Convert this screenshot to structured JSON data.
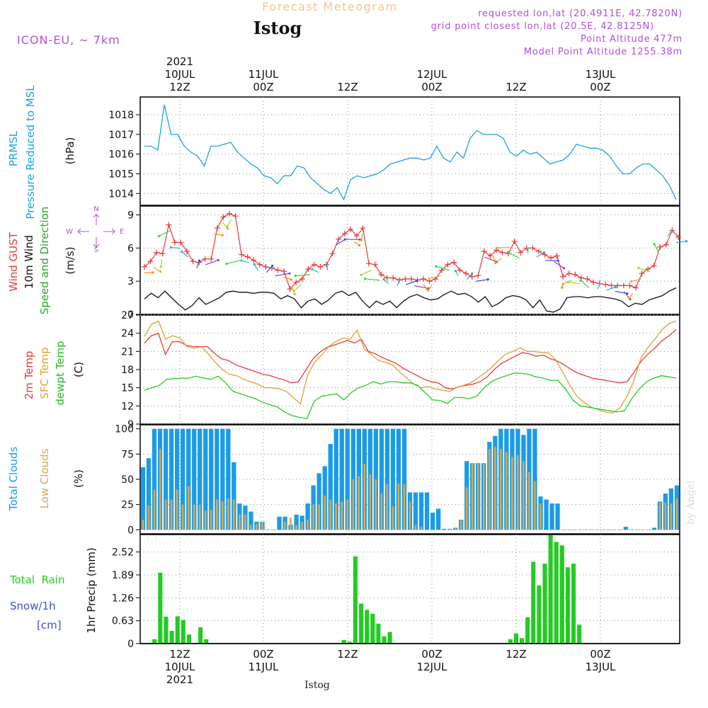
{
  "header": {
    "super_title": "Forecast Meteogram",
    "location": "Istog",
    "model": "ICON-EU, ~ 7km",
    "requested": "requested lon,lat (20.4911E, 42.7820N)",
    "grid_point": "grid point closest lon,lat (20.5E, 42.8125N)",
    "point_altitude": "Point Altitude 477m",
    "model_altitude": "Model Point Altitude 1255.38m",
    "footer": "Istog",
    "watermark": "by Angel"
  },
  "time_axis": {
    "top": [
      {
        "l1": "2021",
        "l2": "10JUL",
        "l3": "12Z"
      },
      {
        "l1": "",
        "l2": "11JUL",
        "l3": "00Z"
      },
      {
        "l1": "",
        "l2": "",
        "l3": "12Z"
      },
      {
        "l1": "",
        "l2": "12JUL",
        "l3": "00Z"
      },
      {
        "l1": "",
        "l2": "",
        "l3": "12Z"
      },
      {
        "l1": "",
        "l2": "13JUL",
        "l3": "00Z"
      }
    ],
    "bottom": [
      {
        "l1": "12Z",
        "l2": "10JUL",
        "l3": "2021"
      },
      {
        "l1": "00Z",
        "l2": "11JUL",
        "l3": ""
      },
      {
        "l1": "12Z",
        "l2": "",
        "l3": ""
      },
      {
        "l1": "00Z",
        "l2": "12JUL",
        "l3": ""
      },
      {
        "l1": "12Z",
        "l2": "",
        "l3": ""
      },
      {
        "l1": "00Z",
        "l2": "13JUL",
        "l3": ""
      }
    ]
  },
  "panel_labels": {
    "pressure": {
      "l1": "PRMSL",
      "l2": "Pressure Reduced to MSL",
      "l3": "(hPa)"
    },
    "wind": {
      "l1": "Wind GUST",
      "l2": "10m Wind",
      "l3": "Speed and Direction",
      "l4": "(m/s)",
      "dir": {
        "n": "N",
        "w": "W",
        "e": "E",
        "s": "S"
      }
    },
    "temp": {
      "l1": "2m Temp",
      "l2": "SFC Temp",
      "l3": "dewpt Temp",
      "l4": "(C)"
    },
    "cloud": {
      "l1": "Total Clouds",
      "l2": "Low Clouds",
      "l3": "(%)"
    },
    "precip": {
      "l1": "Total  Rain",
      "l2": "Snow/1h",
      "l3": "[cm]",
      "l4": "1hr Precip (mm)"
    }
  },
  "colors": {
    "pressure": "#1aa3e0",
    "gust": "#e83a3a",
    "wind": "#111111",
    "t2m": "#e83a3a",
    "tsfc": "#e0a030",
    "dew": "#22cc22",
    "tcc": "#1a9be8",
    "lcc": "#d8a850",
    "rain": "#22cc22",
    "purple": "#b050d8",
    "blue_label": "#3a50d8"
  },
  "chart_data": [
    {
      "type": "line",
      "name": "pressure",
      "ylim": [
        1013.4,
        1018.9
      ],
      "yticks": [
        "1014",
        "1015",
        "1016",
        "1017",
        "1018"
      ],
      "ytick_values": [
        1014,
        1015,
        1016,
        1017,
        1018
      ],
      "x_hours_from": "2021-07-10 04Z",
      "x_range_hours": [
        0,
        79
      ],
      "series": [
        {
          "values": [
            1016.4,
            1016.4,
            1016.2,
            1018.5,
            1017.0,
            1017.0,
            1016.4,
            1016.1,
            1015.9,
            1015.4,
            1016.4,
            1016.4,
            1016.5,
            1016.6,
            1016.1,
            1015.8,
            1015.5,
            1015.3,
            1014.9,
            1014.8,
            1014.5,
            1014.9,
            1014.9,
            1015.4,
            1015.3,
            1014.8,
            1014.5,
            1014.2,
            1014.0,
            1014.3,
            1013.7,
            1014.7,
            1014.9,
            1014.8,
            1014.9,
            1015.0,
            1015.2,
            1015.5,
            1015.6,
            1015.7,
            1015.8,
            1015.8,
            1015.7,
            1015.8,
            1016.4,
            1015.8,
            1015.6,
            1016.1,
            1015.8,
            1016.8,
            1017.2,
            1017.0,
            1017.0,
            1017.0,
            1016.8,
            1016.1,
            1015.9,
            1016.2,
            1016.0,
            1016.1,
            1015.8,
            1015.5,
            1015.6,
            1015.7,
            1016.0,
            1016.5,
            1016.4,
            1016.3,
            1016.3,
            1016.2,
            1015.9,
            1015.4,
            1015.0,
            1015.0,
            1015.3,
            1015.5,
            1015.5,
            1015.2,
            1014.9,
            1014.4,
            1013.7
          ]
        }
      ]
    },
    {
      "type": "line",
      "name": "wind",
      "ylim": [
        0,
        9.8
      ],
      "yticks": [
        "0",
        "3",
        "6",
        "9"
      ],
      "ytick_values": [
        0,
        3,
        6,
        9
      ],
      "series": [
        {
          "name": "Wind GUST",
          "values": [
            4.3,
            4.8,
            5.6,
            5.5,
            8.1,
            6.5,
            6.5,
            5.7,
            4.8,
            4.7,
            5.0,
            5.0,
            7.8,
            8.8,
            9.1,
            8.9,
            5.4,
            5.2,
            4.9,
            4.5,
            4.3,
            4.2,
            4.0,
            3.9,
            2.3,
            2.9,
            3.2,
            4.1,
            4.5,
            4.3,
            4.5,
            5.5,
            6.8,
            7.3,
            7.7,
            7.1,
            7.8,
            4.6,
            4.5,
            3.6,
            3.3,
            3.3,
            3.1,
            3.2,
            3.2,
            3.1,
            3.2,
            3.0,
            3.2,
            4.0,
            4.5,
            4.7,
            4.0,
            3.7,
            3.4,
            3.5,
            5.7,
            5.3,
            5.8,
            5.6,
            5.5,
            6.6,
            5.6,
            6.0,
            6.0,
            5.7,
            5.4,
            5.1,
            5.3,
            3.4,
            3.7,
            3.6,
            3.3,
            3.2,
            2.9,
            2.8,
            2.7,
            2.6,
            2.6,
            2.6,
            2.6,
            2.4,
            3.7,
            4.1,
            4.4,
            6.1,
            6.3,
            7.6,
            7.0
          ]
        },
        {
          "name": "10m Wind",
          "values": [
            1.4,
            1.9,
            1.5,
            2.1,
            1.5,
            0.9,
            0.4,
            0.8,
            1.5,
            0.9,
            1.2,
            1.5,
            2.0,
            2.1,
            2.0,
            2.0,
            1.9,
            2.0,
            2.0,
            1.9,
            1.4,
            1.7,
            1.4,
            0.6,
            1.2,
            1.4,
            0.9,
            1.3,
            1.9,
            2.1,
            1.7,
            2.0,
            1.2,
            0.6,
            1.2,
            0.9,
            1.2,
            0.6,
            1.2,
            1.6,
            1.8,
            1.5,
            1.3,
            1.4,
            1.8,
            2.1,
            1.8,
            1.9,
            1.6,
            1.1,
            1.6,
            0.7,
            1.0,
            1.5,
            1.7,
            1.6,
            1.3,
            0.6,
            1.3,
            0.3,
            0.2,
            0.5,
            1.5,
            1.6,
            1.6,
            1.5,
            1.6,
            1.6,
            1.5,
            1.4,
            1.2,
            0.7,
            1.0,
            0.9,
            1.3,
            1.5,
            1.7,
            2.1,
            2.4
          ]
        }
      ]
    },
    {
      "type": "line",
      "name": "temperature",
      "ylim": [
        9,
        27
      ],
      "yticks": [
        "9",
        "12",
        "15",
        "18",
        "21",
        "24",
        "27"
      ],
      "ytick_values": [
        9,
        12,
        15,
        18,
        21,
        24,
        27
      ],
      "series": [
        {
          "name": "2m Temp",
          "values": [
            22.4,
            23.6,
            24.0,
            20.5,
            22.6,
            22.6,
            22.0,
            21.8,
            21.8,
            21.8,
            20.7,
            19.8,
            19.5,
            18.8,
            18.4,
            18.0,
            17.6,
            17.2,
            17.0,
            16.6,
            16.3,
            15.8,
            16.0,
            17.8,
            19.6,
            20.8,
            21.6,
            22.0,
            22.4,
            22.8,
            22.4,
            23.0,
            21.0,
            20.6,
            20.0,
            19.5,
            19.0,
            18.2,
            17.6,
            17.0,
            16.4,
            16.0,
            15.8,
            15.0,
            14.8,
            15.2,
            15.4,
            15.6,
            16.0,
            16.8,
            18.0,
            19.0,
            19.6,
            20.2,
            20.8,
            20.6,
            20.2,
            20.4,
            19.8,
            19.4,
            18.8,
            18.0,
            17.4,
            17.0,
            16.6,
            16.4,
            16.2,
            16.0,
            15.8,
            16.0,
            17.6,
            19.4,
            20.6,
            21.6,
            22.8,
            23.6,
            24.6
          ]
        },
        {
          "name": "SFC Temp",
          "values": [
            23.5,
            25.5,
            26.0,
            23.0,
            23.6,
            23.2,
            21.8,
            21.5,
            21.8,
            20.6,
            19.2,
            18.0,
            17.2,
            17.0,
            16.4,
            16.0,
            15.6,
            15.0,
            15.0,
            14.8,
            14.4,
            13.4,
            12.3,
            17.0,
            19.2,
            20.4,
            21.8,
            22.6,
            23.2,
            23.0,
            24.5,
            21.4,
            20.5,
            19.5,
            19.2,
            18.8,
            17.6,
            16.6,
            15.6,
            15.0,
            15.2,
            14.8,
            14.6,
            14.4,
            15.0,
            15.4,
            15.8,
            16.6,
            17.4,
            18.4,
            19.6,
            20.6,
            21.0,
            21.6,
            21.0,
            21.0,
            20.8,
            20.8,
            19.6,
            17.6,
            15.4,
            13.6,
            12.6,
            11.8,
            11.4,
            11.0,
            10.8,
            11.6,
            13.4,
            16.0,
            19.8,
            21.6,
            23.0,
            24.6,
            25.6,
            26.0
          ]
        },
        {
          "name": "dewpt Temp",
          "values": [
            14.6,
            15.0,
            15.4,
            16.4,
            16.5,
            16.6,
            16.6,
            16.9,
            16.6,
            16.4,
            16.9,
            15.8,
            14.4,
            14.0,
            13.6,
            13.2,
            12.6,
            12.2,
            11.8,
            11.0,
            10.4,
            10.1,
            9.9,
            12.8,
            13.6,
            13.8,
            14.0,
            13.0,
            14.2,
            15.0,
            15.4,
            16.0,
            15.6,
            16.0,
            16.0,
            15.8,
            15.8,
            15.4,
            14.2,
            13.0,
            12.9,
            12.4,
            13.4,
            13.4,
            13.2,
            13.6,
            15.0,
            16.0,
            16.6,
            17.0,
            17.4,
            17.4,
            17.2,
            16.8,
            16.6,
            16.2,
            16.2,
            14.8,
            13.0,
            12.0,
            11.8,
            11.6,
            11.4,
            11.2,
            11.0,
            11.2,
            13.2,
            14.8,
            16.0,
            16.6,
            17.0,
            16.8,
            16.6
          ]
        }
      ]
    },
    {
      "type": "bar",
      "name": "clouds",
      "ylim": [
        -4,
        104
      ],
      "yticks": [
        "0",
        "25",
        "50",
        "75",
        "100"
      ],
      "ytick_values": [
        0,
        25,
        50,
        75,
        100
      ],
      "series": [
        {
          "name": "Total Clouds",
          "values": [
            62,
            71,
            100,
            100,
            100,
            100,
            100,
            100,
            100,
            100,
            100,
            100,
            100,
            100,
            100,
            100,
            67,
            26,
            24,
            18,
            8,
            8,
            0,
            0,
            13,
            13,
            5,
            15,
            14,
            26,
            44,
            56,
            63,
            85,
            100,
            100,
            100,
            100,
            100,
            100,
            100,
            100,
            100,
            100,
            100,
            100,
            100,
            37,
            37,
            37,
            37,
            17,
            21,
            1,
            1,
            2,
            10,
            68,
            66,
            66,
            66,
            87,
            93,
            100,
            100,
            100,
            100,
            94,
            100,
            100,
            33,
            30,
            26,
            26,
            0,
            0,
            0,
            0,
            0,
            0,
            0,
            0,
            0,
            0,
            0,
            3,
            0,
            0,
            0,
            0,
            2,
            28,
            36,
            41,
            44
          ]
        },
        {
          "name": "Low Clouds",
          "values": [
            10,
            24,
            40,
            80,
            30,
            30,
            40,
            25,
            43,
            25,
            25,
            19,
            20,
            30,
            28,
            31,
            30,
            15,
            15,
            5,
            6,
            8,
            0,
            0,
            0,
            8,
            12,
            5,
            8,
            10,
            25,
            25,
            34,
            30,
            26,
            28,
            30,
            50,
            53,
            65,
            55,
            50,
            36,
            45,
            23,
            46,
            45,
            28,
            5,
            3,
            0,
            0,
            0,
            0,
            1,
            2,
            10,
            42,
            66,
            66,
            66,
            80,
            82,
            80,
            77,
            72,
            74,
            68,
            57,
            48,
            26,
            0,
            0,
            0,
            0,
            0,
            0,
            0,
            0,
            0,
            0,
            0,
            0,
            0,
            0,
            0,
            0,
            0,
            0,
            0,
            0,
            27,
            27,
            26,
            31
          ]
        }
      ]
    },
    {
      "type": "bar",
      "name": "precipitation",
      "ylim": [
        0,
        3.0
      ],
      "yticks": [
        "0",
        "0.63",
        "1.26",
        "1.89",
        "2.52"
      ],
      "ytick_values": [
        0,
        0.63,
        1.26,
        1.89,
        2.52
      ],
      "series": [
        {
          "name": "1hr Precip",
          "values": [
            0,
            0,
            0.12,
            1.95,
            0.74,
            0.35,
            0.75,
            0.65,
            0.25,
            0,
            0.45,
            0.12,
            0,
            0,
            0,
            0,
            0,
            0,
            0,
            0,
            0,
            0,
            0,
            0,
            0,
            0,
            0,
            0,
            0,
            0,
            0,
            0,
            0,
            0,
            0,
            0.1,
            0.05,
            2.4,
            1.1,
            0.93,
            0.82,
            0.55,
            0.2,
            0.32,
            0,
            0,
            0,
            0,
            0,
            0,
            0,
            0,
            0,
            0,
            0,
            0,
            0,
            0,
            0,
            0,
            0,
            0,
            0,
            0,
            0.12,
            0.28,
            0.15,
            0.72,
            2.25,
            1.6,
            2.2,
            2.98,
            2.8,
            2.7,
            2.1,
            2.2,
            0.52,
            0,
            0,
            0,
            0,
            0,
            0,
            0,
            0,
            0,
            0,
            0,
            0,
            0,
            0,
            0,
            0,
            0
          ]
        }
      ]
    }
  ]
}
